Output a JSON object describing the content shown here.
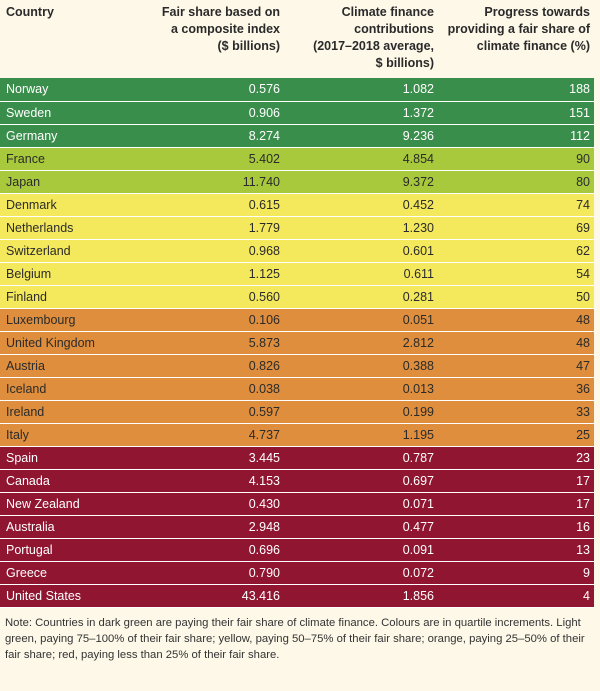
{
  "header": {
    "country": "Country",
    "fair_share_l1": "Fair share based on",
    "fair_share_l2": "a composite index",
    "fair_share_l3": "($ billions)",
    "contrib_l1": "Climate finance",
    "contrib_l2": "contributions",
    "contrib_l3": "(2017–2018 average,",
    "contrib_l4": "$ billions)",
    "progress_l1": "Progress towards",
    "progress_l2": "providing a fair share of",
    "progress_l3": "climate finance (%)"
  },
  "colors": {
    "dark_green": "#3a8e4c",
    "light_green": "#a9c93d",
    "yellow": "#f4e85c",
    "orange": "#de8e3c",
    "red": "#8f1531"
  },
  "rows": [
    {
      "country": "Norway",
      "fair_share": "0.576",
      "contributions": "1.082",
      "progress": "188",
      "band": "dark-green"
    },
    {
      "country": "Sweden",
      "fair_share": "0.906",
      "contributions": "1.372",
      "progress": "151",
      "band": "dark-green"
    },
    {
      "country": "Germany",
      "fair_share": "8.274",
      "contributions": "9.236",
      "progress": "112",
      "band": "dark-green"
    },
    {
      "country": "France",
      "fair_share": "5.402",
      "contributions": "4.854",
      "progress": "90",
      "band": "light-green"
    },
    {
      "country": "Japan",
      "fair_share": "11.740",
      "contributions": "9.372",
      "progress": "80",
      "band": "light-green"
    },
    {
      "country": "Denmark",
      "fair_share": "0.615",
      "contributions": "0.452",
      "progress": "74",
      "band": "yellow"
    },
    {
      "country": "Netherlands",
      "fair_share": "1.779",
      "contributions": "1.230",
      "progress": "69",
      "band": "yellow"
    },
    {
      "country": "Switzerland",
      "fair_share": "0.968",
      "contributions": "0.601",
      "progress": "62",
      "band": "yellow"
    },
    {
      "country": "Belgium",
      "fair_share": "1.125",
      "contributions": "0.611",
      "progress": "54",
      "band": "yellow"
    },
    {
      "country": "Finland",
      "fair_share": "0.560",
      "contributions": "0.281",
      "progress": "50",
      "band": "yellow"
    },
    {
      "country": "Luxembourg",
      "fair_share": "0.106",
      "contributions": "0.051",
      "progress": "48",
      "band": "orange"
    },
    {
      "country": "United Kingdom",
      "fair_share": "5.873",
      "contributions": "2.812",
      "progress": "48",
      "band": "orange"
    },
    {
      "country": "Austria",
      "fair_share": "0.826",
      "contributions": "0.388",
      "progress": "47",
      "band": "orange"
    },
    {
      "country": "Iceland",
      "fair_share": "0.038",
      "contributions": "0.013",
      "progress": "36",
      "band": "orange"
    },
    {
      "country": "Ireland",
      "fair_share": "0.597",
      "contributions": "0.199",
      "progress": "33",
      "band": "orange"
    },
    {
      "country": "Italy",
      "fair_share": "4.737",
      "contributions": "1.195",
      "progress": "25",
      "band": "orange"
    },
    {
      "country": "Spain",
      "fair_share": "3.445",
      "contributions": "0.787",
      "progress": "23",
      "band": "red"
    },
    {
      "country": "Canada",
      "fair_share": "4.153",
      "contributions": "0.697",
      "progress": "17",
      "band": "red"
    },
    {
      "country": "New Zealand",
      "fair_share": "0.430",
      "contributions": "0.071",
      "progress": "17",
      "band": "red"
    },
    {
      "country": "Australia",
      "fair_share": "2.948",
      "contributions": "0.477",
      "progress": "16",
      "band": "red"
    },
    {
      "country": "Portugal",
      "fair_share": "0.696",
      "contributions": "0.091",
      "progress": "13",
      "band": "red"
    },
    {
      "country": "Greece",
      "fair_share": "0.790",
      "contributions": "0.072",
      "progress": "9",
      "band": "red"
    },
    {
      "country": "United States",
      "fair_share": "43.416",
      "contributions": "1.856",
      "progress": "4",
      "band": "red"
    }
  ],
  "note": "Note: Countries in dark green are paying their fair share of climate finance. Colours are in quartile increments. Light green, paying 75–100% of their fair share; yellow, paying 50–75% of their fair share; orange, paying 25–50% of their fair share; red, paying less than 25% of their fair share."
}
